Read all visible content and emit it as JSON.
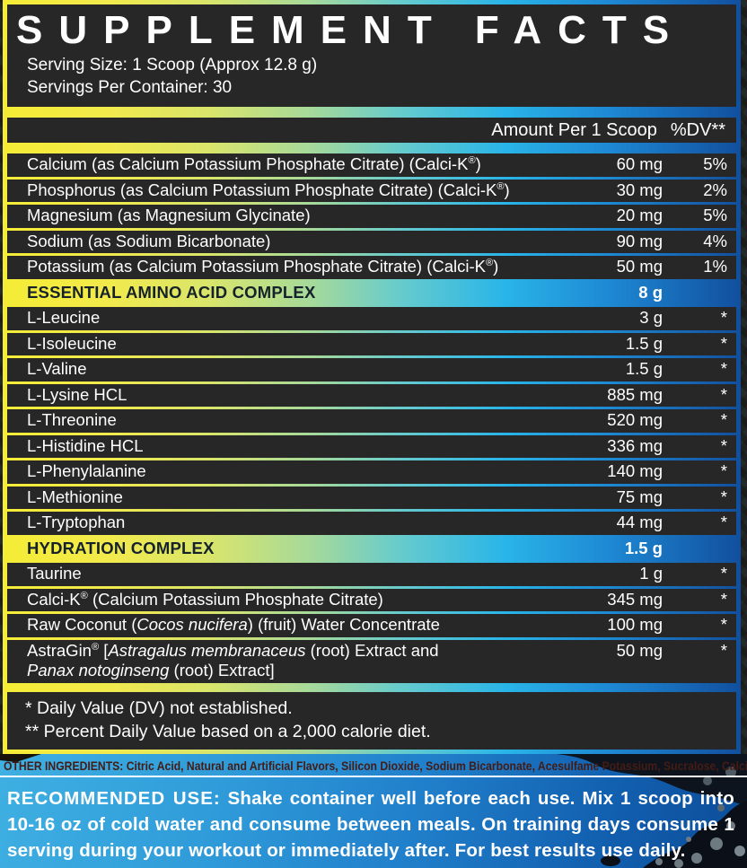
{
  "colors": {
    "accent_yellow": "#f5ec35",
    "accent_cyan": "#29b5e8",
    "accent_blue": "#114f9e",
    "row_bg": "#272727",
    "bottom_blue_light": "#3fb0e2",
    "bottom_blue_dark": "#0c4c97",
    "other_ingredients_text": "#441c15",
    "section_title_text": "#15222c"
  },
  "header": {
    "title": "SUPPLEMENT FACTS",
    "serving_size": "Serving Size: 1 Scoop (Approx 12.8 g)",
    "servings_per_container": "Servings Per Container: 30"
  },
  "columns": {
    "amount": "Amount Per 1 Scoop",
    "dv": "%DV**"
  },
  "table": {
    "rows": [
      {
        "type": "item",
        "name": [
          {
            "text": "Calcium (as Calcium Potassium Phosphate Citrate) (Calci-K®)"
          }
        ],
        "amount": "60 mg",
        "dv": "5%"
      },
      {
        "type": "item",
        "name": [
          {
            "text": "Phosphorus (as Calcium Potassium Phosphate Citrate) (Calci-K®)"
          }
        ],
        "amount": "30 mg",
        "dv": "2%"
      },
      {
        "type": "item",
        "name": [
          {
            "text": "Magnesium (as Magnesium Glycinate)"
          }
        ],
        "amount": "20 mg",
        "dv": "5%"
      },
      {
        "type": "item",
        "name": [
          {
            "text": "Sodium (as Sodium Bicarbonate)"
          }
        ],
        "amount": "90 mg",
        "dv": "4%"
      },
      {
        "type": "item",
        "name": [
          {
            "text": "Potassium (as Calcium Potassium Phosphate Citrate) (Calci-K®)"
          }
        ],
        "amount": "50 mg",
        "dv": "1%"
      },
      {
        "type": "section",
        "name": [
          {
            "text": "ESSENTIAL AMINO ACID COMPLEX"
          }
        ],
        "amount": "8 g",
        "dv": ""
      },
      {
        "type": "item",
        "name": [
          {
            "text": "L-Leucine"
          }
        ],
        "amount": "3 g",
        "dv": "*"
      },
      {
        "type": "item",
        "name": [
          {
            "text": "L-Isoleucine"
          }
        ],
        "amount": "1.5 g",
        "dv": "*"
      },
      {
        "type": "item",
        "name": [
          {
            "text": "L-Valine"
          }
        ],
        "amount": "1.5 g",
        "dv": "*"
      },
      {
        "type": "item",
        "name": [
          {
            "text": "L-Lysine HCL"
          }
        ],
        "amount": "885 mg",
        "dv": "*"
      },
      {
        "type": "item",
        "name": [
          {
            "text": "L-Threonine"
          }
        ],
        "amount": "520 mg",
        "dv": "*"
      },
      {
        "type": "item",
        "name": [
          {
            "text": "L-Histidine HCL"
          }
        ],
        "amount": "336 mg",
        "dv": "*"
      },
      {
        "type": "item",
        "name": [
          {
            "text": "L-Phenylalanine"
          }
        ],
        "amount": "140 mg",
        "dv": "*"
      },
      {
        "type": "item",
        "name": [
          {
            "text": "L-Methionine"
          }
        ],
        "amount": "75 mg",
        "dv": "*"
      },
      {
        "type": "item",
        "name": [
          {
            "text": "L-Tryptophan"
          }
        ],
        "amount": "44 mg",
        "dv": "*"
      },
      {
        "type": "section",
        "name": [
          {
            "text": "HYDRATION COMPLEX"
          }
        ],
        "amount": "1.5 g",
        "dv": ""
      },
      {
        "type": "item",
        "name": [
          {
            "text": "Taurine"
          }
        ],
        "amount": "1 g",
        "dv": "*"
      },
      {
        "type": "item",
        "name": [
          {
            "text": "Calci-K® (Calcium Potassium Phosphate Citrate)"
          }
        ],
        "amount": "345 mg",
        "dv": "*"
      },
      {
        "type": "item",
        "name": [
          {
            "text": "Raw Coconut ("
          },
          {
            "text": "Cocos nucifera",
            "italic": true
          },
          {
            "text": ") (fruit) Water Concentrate"
          }
        ],
        "amount": "100 mg",
        "dv": "*"
      },
      {
        "type": "item",
        "name": [
          {
            "text": "AstraGin® ["
          },
          {
            "text": "Astragalus membranaceus",
            "italic": true
          },
          {
            "text": " (root) Extract and"
          },
          {
            "break": true
          },
          {
            "text": "Panax notoginseng",
            "italic": true
          },
          {
            "text": " (root) Extract]"
          }
        ],
        "amount": "50 mg",
        "dv": "*"
      }
    ]
  },
  "footnotes": [
    "* Daily Value (DV) not established.",
    "** Percent Daily Value based on a 2,000 calorie diet."
  ],
  "other_ingredients": {
    "label": "OTHER INGREDIENTS:",
    "text": " Citric Acid, Natural and Artificial Flavors, Silicon Dioxide, Sodium Bicarbonate, Acesulfame Potassium, Sucralose, Calcium Silicate."
  },
  "recommended_use": {
    "label": "RECOMMENDED USE:",
    "text": " Shake container well before each use. Mix 1 scoop into 10-16 oz of cold water and consume between meals. On training days consume 1 serving during your workout or immediately after. For best results use daily."
  }
}
